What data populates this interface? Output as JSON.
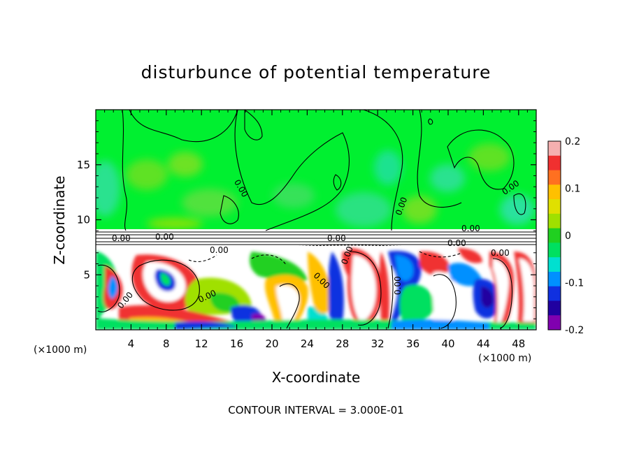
{
  "chart_data": {
    "type": "heatmap",
    "title": "disturbunce of potential temperature",
    "xlabel": "X-coordinate",
    "ylabel": "Z-coordinate",
    "x_unit_label_left": "(×1000 m)",
    "x_unit_label_right": "(×1000 m)",
    "footer": "CONTOUR INTERVAL = 3.000E-01",
    "xlim": [
      0,
      50
    ],
    "ylim": [
      0,
      20
    ],
    "x_ticks": [
      "4",
      "8",
      "12",
      "16",
      "20",
      "24",
      "28",
      "32",
      "36",
      "40",
      "44",
      "48"
    ],
    "x_tick_values": [
      4,
      8,
      12,
      16,
      20,
      24,
      28,
      32,
      36,
      40,
      44,
      48
    ],
    "y_ticks": [
      "5",
      "10",
      "15"
    ],
    "y_tick_values": [
      5,
      10,
      15
    ],
    "colorbar": {
      "min": -0.2,
      "max": 0.2,
      "tick_labels": [
        "0.2",
        "0.1",
        "0",
        "-0.1",
        "-0.2"
      ],
      "tick_values": [
        0.2,
        0.1,
        0,
        -0.1,
        -0.2
      ],
      "colors": [
        "#f5b0b0",
        "#f03030",
        "#ff7020",
        "#ffc000",
        "#e0e000",
        "#a0e000",
        "#20d020",
        "#00e060",
        "#00e0d0",
        "#0090ff",
        "#1030e0",
        "#2000a0",
        "#8000b0"
      ]
    },
    "contour_labels": [
      "0.00",
      "0.00",
      "0.00",
      "0.00",
      "0.00",
      "0.00",
      "0.00",
      "0.00",
      "0.00",
      "0.00",
      "0.00",
      "0.00",
      "0.00",
      "0.00",
      "0.00"
    ],
    "layers": {
      "upper_level_value": 0,
      "inversion_band_z": [
        7.8,
        9.1
      ],
      "lower_level_range": [
        -0.2,
        0.2
      ]
    }
  }
}
